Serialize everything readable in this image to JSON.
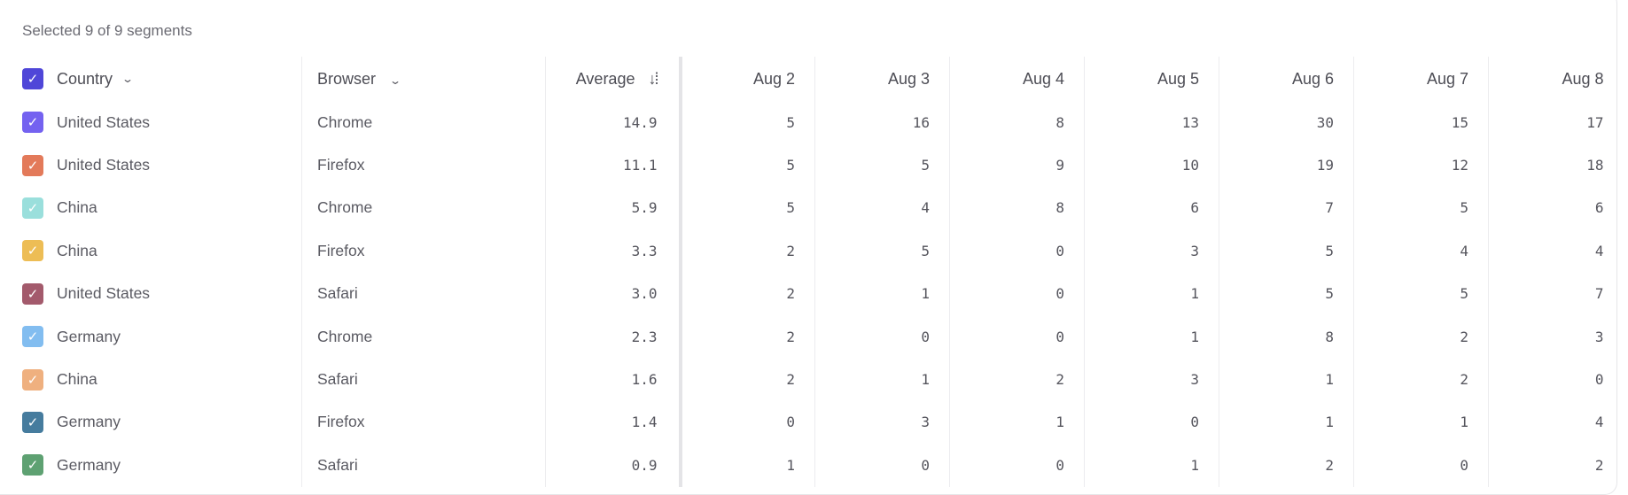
{
  "summary": "Selected 9 of 9 segments",
  "header": {
    "country": "Country",
    "browser": "Browser",
    "average": "Average",
    "sort_icon": "↓⁞",
    "chevron": "⌄",
    "check": "✓",
    "select_all_color": "#4f46d8",
    "dates": [
      "Aug 2",
      "Aug 3",
      "Aug 4",
      "Aug 5",
      "Aug 6",
      "Aug 7",
      "Aug 8"
    ]
  },
  "rows": [
    {
      "country": "United States",
      "browser": "Chrome",
      "average": "14.9",
      "color": "#7462f0",
      "values": [
        "5",
        "16",
        "8",
        "13",
        "30",
        "15",
        "17"
      ]
    },
    {
      "country": "United States",
      "browser": "Firefox",
      "average": "11.1",
      "color": "#e37a5a",
      "values": [
        "5",
        "5",
        "9",
        "10",
        "19",
        "12",
        "18"
      ]
    },
    {
      "country": "China",
      "browser": "Chrome",
      "average": "5.9",
      "color": "#9adfdc",
      "values": [
        "5",
        "4",
        "8",
        "6",
        "7",
        "5",
        "6"
      ]
    },
    {
      "country": "China",
      "browser": "Firefox",
      "average": "3.3",
      "color": "#edbd55",
      "values": [
        "2",
        "5",
        "0",
        "3",
        "5",
        "4",
        "4"
      ]
    },
    {
      "country": "United States",
      "browser": "Safari",
      "average": "3.0",
      "color": "#a35a6c",
      "values": [
        "2",
        "1",
        "0",
        "1",
        "5",
        "5",
        "7"
      ]
    },
    {
      "country": "Germany",
      "browser": "Chrome",
      "average": "2.3",
      "color": "#82bdf0",
      "values": [
        "2",
        "0",
        "0",
        "1",
        "8",
        "2",
        "3"
      ]
    },
    {
      "country": "China",
      "browser": "Safari",
      "average": "1.6",
      "color": "#efb07f",
      "values": [
        "2",
        "1",
        "2",
        "3",
        "1",
        "2",
        "0"
      ]
    },
    {
      "country": "Germany",
      "browser": "Firefox",
      "average": "1.4",
      "color": "#467c9e",
      "values": [
        "0",
        "3",
        "1",
        "0",
        "1",
        "1",
        "4"
      ]
    },
    {
      "country": "Germany",
      "browser": "Safari",
      "average": "0.9",
      "color": "#5ea172",
      "values": [
        "1",
        "0",
        "0",
        "1",
        "2",
        "0",
        "2"
      ]
    }
  ]
}
